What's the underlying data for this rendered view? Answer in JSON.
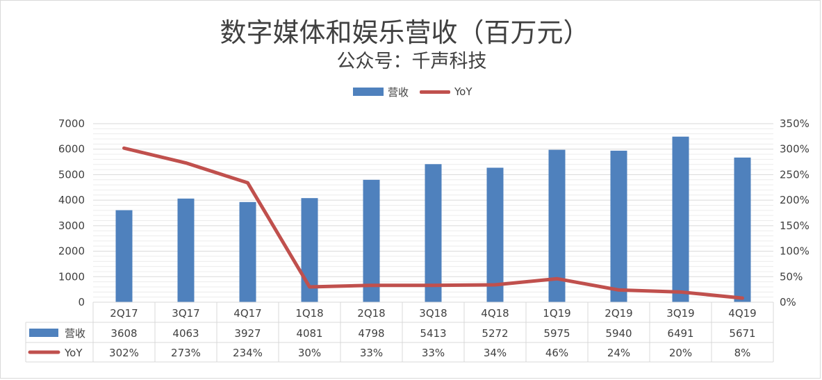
{
  "title": "数字媒体和娱乐营收（百万元）",
  "subtitle": "公众号：千声科技",
  "legend": {
    "bar_label": "营收",
    "line_label": "YoY"
  },
  "chart_data": {
    "type": "bar",
    "categories": [
      "2Q17",
      "3Q17",
      "4Q17",
      "1Q18",
      "2Q18",
      "3Q18",
      "4Q18",
      "1Q19",
      "2Q19",
      "3Q19",
      "4Q19"
    ],
    "series": [
      {
        "name": "营收",
        "type": "bar",
        "axis": "left",
        "values": [
          3608,
          4063,
          3927,
          4081,
          4798,
          5413,
          5272,
          5975,
          5940,
          6491,
          5671
        ]
      },
      {
        "name": "YoY",
        "type": "line",
        "axis": "right",
        "values": [
          302,
          273,
          234,
          30,
          33,
          33,
          34,
          46,
          24,
          20,
          8
        ]
      }
    ],
    "y_left": {
      "min": 0,
      "max": 7000,
      "ticks": [
        0,
        1000,
        2000,
        3000,
        4000,
        5000,
        6000,
        7000
      ]
    },
    "y_right": {
      "min": 0,
      "max": 350,
      "ticks": [
        0,
        50,
        100,
        150,
        200,
        250,
        300,
        350
      ],
      "unit": "%"
    },
    "data_table": true,
    "colors": {
      "bar": "#4f81bd",
      "line": "#c0504d",
      "grid": "#d9d9d9"
    }
  }
}
